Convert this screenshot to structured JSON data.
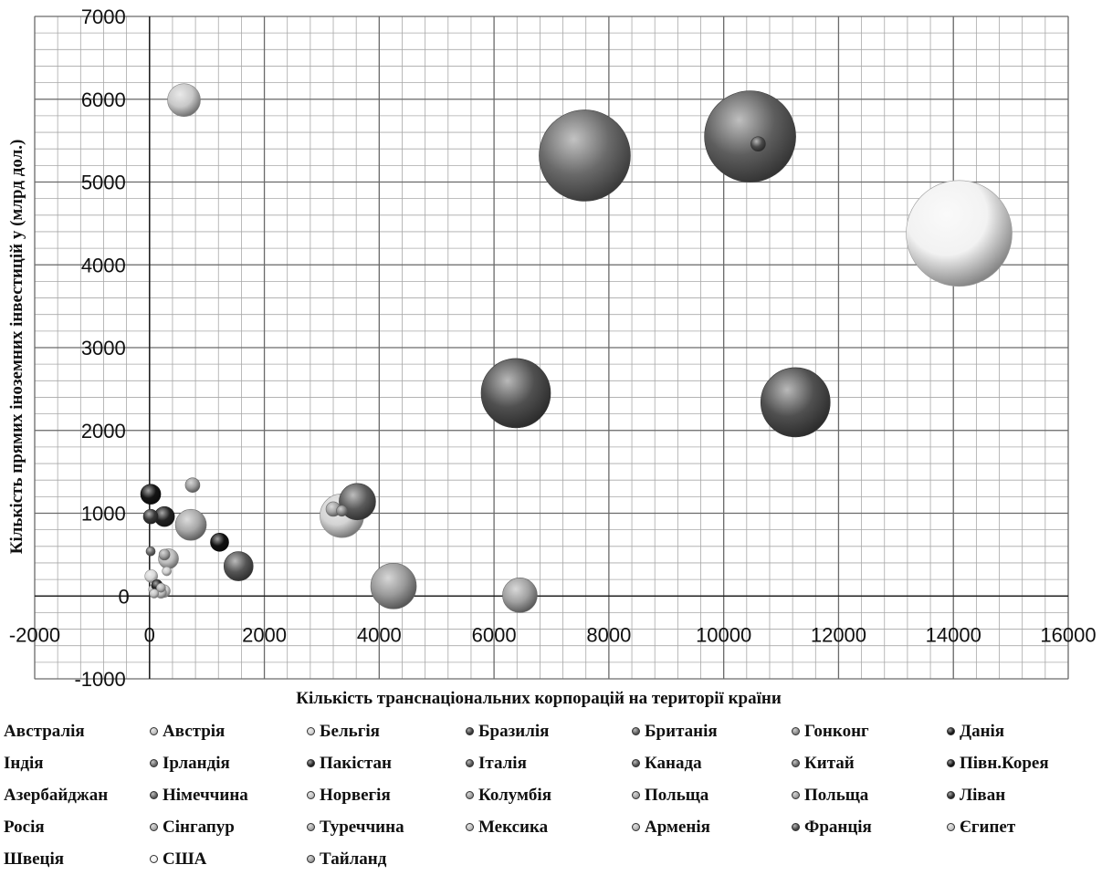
{
  "chart_data": {
    "type": "bubble",
    "title": "",
    "xlabel": "Кількість транснаціональних корпорацій на території країни",
    "ylabel": "Кількість прямих іноземних інвестицій у  (млрд дол.)",
    "xlim": [
      -2000,
      16000
    ],
    "ylim": [
      -1000,
      7000
    ],
    "x_ticks": [
      -2000,
      0,
      2000,
      4000,
      6000,
      8000,
      10000,
      12000,
      14000,
      16000
    ],
    "y_ticks": [
      -1000,
      0,
      1000,
      2000,
      3000,
      4000,
      5000,
      6000,
      7000
    ],
    "grid": true,
    "legend_position": "bottom",
    "series": [
      {
        "name": "Австралія",
        "x": 600,
        "y": 5990,
        "size": 18,
        "color": "#c8c8c8",
        "marker": false
      },
      {
        "name": "Австрія",
        "x": 330,
        "y": 450,
        "size": 11,
        "color": "#bdbdbd"
      },
      {
        "name": "Бельгія",
        "x": 250,
        "y": 60,
        "size": 7,
        "color": "#d0d0d0"
      },
      {
        "name": "Бразилія",
        "x": 20,
        "y": 960,
        "size": 8,
        "color": "#3a3a3a"
      },
      {
        "name": "Британія",
        "x": 3620,
        "y": 1140,
        "size": 20,
        "color": "#5a5a5a"
      },
      {
        "name": "Гонконг",
        "x": 3350,
        "y": 1030,
        "size": 6,
        "color": "#8a8a8a"
      },
      {
        "name": "Данія",
        "x": 20,
        "y": 1230,
        "size": 11,
        "color": "#141414"
      },
      {
        "name": "Індія",
        "x": 1550,
        "y": 360,
        "size": 16,
        "color": "#555555",
        "marker": false
      },
      {
        "name": "Ірландія",
        "x": 20,
        "y": 540,
        "size": 5,
        "color": "#6a6a6a"
      },
      {
        "name": "Пакістан",
        "x": 260,
        "y": 960,
        "size": 11,
        "color": "#222222"
      },
      {
        "name": "Італія",
        "x": 6380,
        "y": 2450,
        "size": 38,
        "color": "#505050"
      },
      {
        "name": "Канада",
        "x": 11250,
        "y": 2340,
        "size": 38,
        "color": "#505050"
      },
      {
        "name": "Китай",
        "x": 7580,
        "y": 5320,
        "size": 50,
        "color": "#6a6a6a"
      },
      {
        "name": "Півн.Корея",
        "x": 1220,
        "y": 650,
        "size": 10,
        "color": "#111111"
      },
      {
        "name": "Азербайджан",
        "x": 30,
        "y": 240,
        "size": 7,
        "color": "#d8d8d8",
        "marker": false
      },
      {
        "name": "Німеччина",
        "x": 10460,
        "y": 5550,
        "size": 50,
        "color": "#5e5e5e"
      },
      {
        "name": "Норвегія",
        "x": 80,
        "y": 80,
        "size": 6,
        "color": "#c0c0c0"
      },
      {
        "name": "Колумбія",
        "x": 4250,
        "y": 120,
        "size": 25,
        "color": "#9a9a9a"
      },
      {
        "name": "Польща",
        "x": 6450,
        "y": 10,
        "size": 19,
        "color": "#a0a0a0"
      },
      {
        "name": "Польща",
        "x": 750,
        "y": 1340,
        "size": 8,
        "color": "#9c9c9c"
      },
      {
        "name": "Ліван",
        "x": 130,
        "y": 130,
        "size": 6,
        "color": "#2a2a2a"
      },
      {
        "name": "Росія",
        "x": 3350,
        "y": 970,
        "size": 24,
        "color": "#d4d4d4",
        "marker": false
      },
      {
        "name": "Сінгапур",
        "x": 720,
        "y": 860,
        "size": 17,
        "color": "#a8a8a8"
      },
      {
        "name": "Туреччина",
        "x": 3200,
        "y": 1050,
        "size": 8,
        "color": "#a4a4a4"
      },
      {
        "name": "Мексика",
        "x": 200,
        "y": 40,
        "size": 6,
        "color": "#bcbcbc"
      },
      {
        "name": "Арменія",
        "x": 200,
        "y": 100,
        "size": 5,
        "color": "#b4b4b4"
      },
      {
        "name": "Франція",
        "x": 10600,
        "y": 5460,
        "size": 8,
        "color": "#4a4a4a"
      },
      {
        "name": "Єгипет",
        "x": 80,
        "y": 30,
        "size": 5,
        "color": "#c4c4c4"
      },
      {
        "name": "Швеція",
        "x": 300,
        "y": 300,
        "size": 5,
        "color": "#cccccc",
        "marker": false
      },
      {
        "name": "США",
        "x": 14100,
        "y": 4380,
        "size": 58,
        "color": "#f2f2f2"
      },
      {
        "name": "Тайланд",
        "x": 260,
        "y": 500,
        "size": 6,
        "color": "#9e9e9e"
      }
    ]
  }
}
